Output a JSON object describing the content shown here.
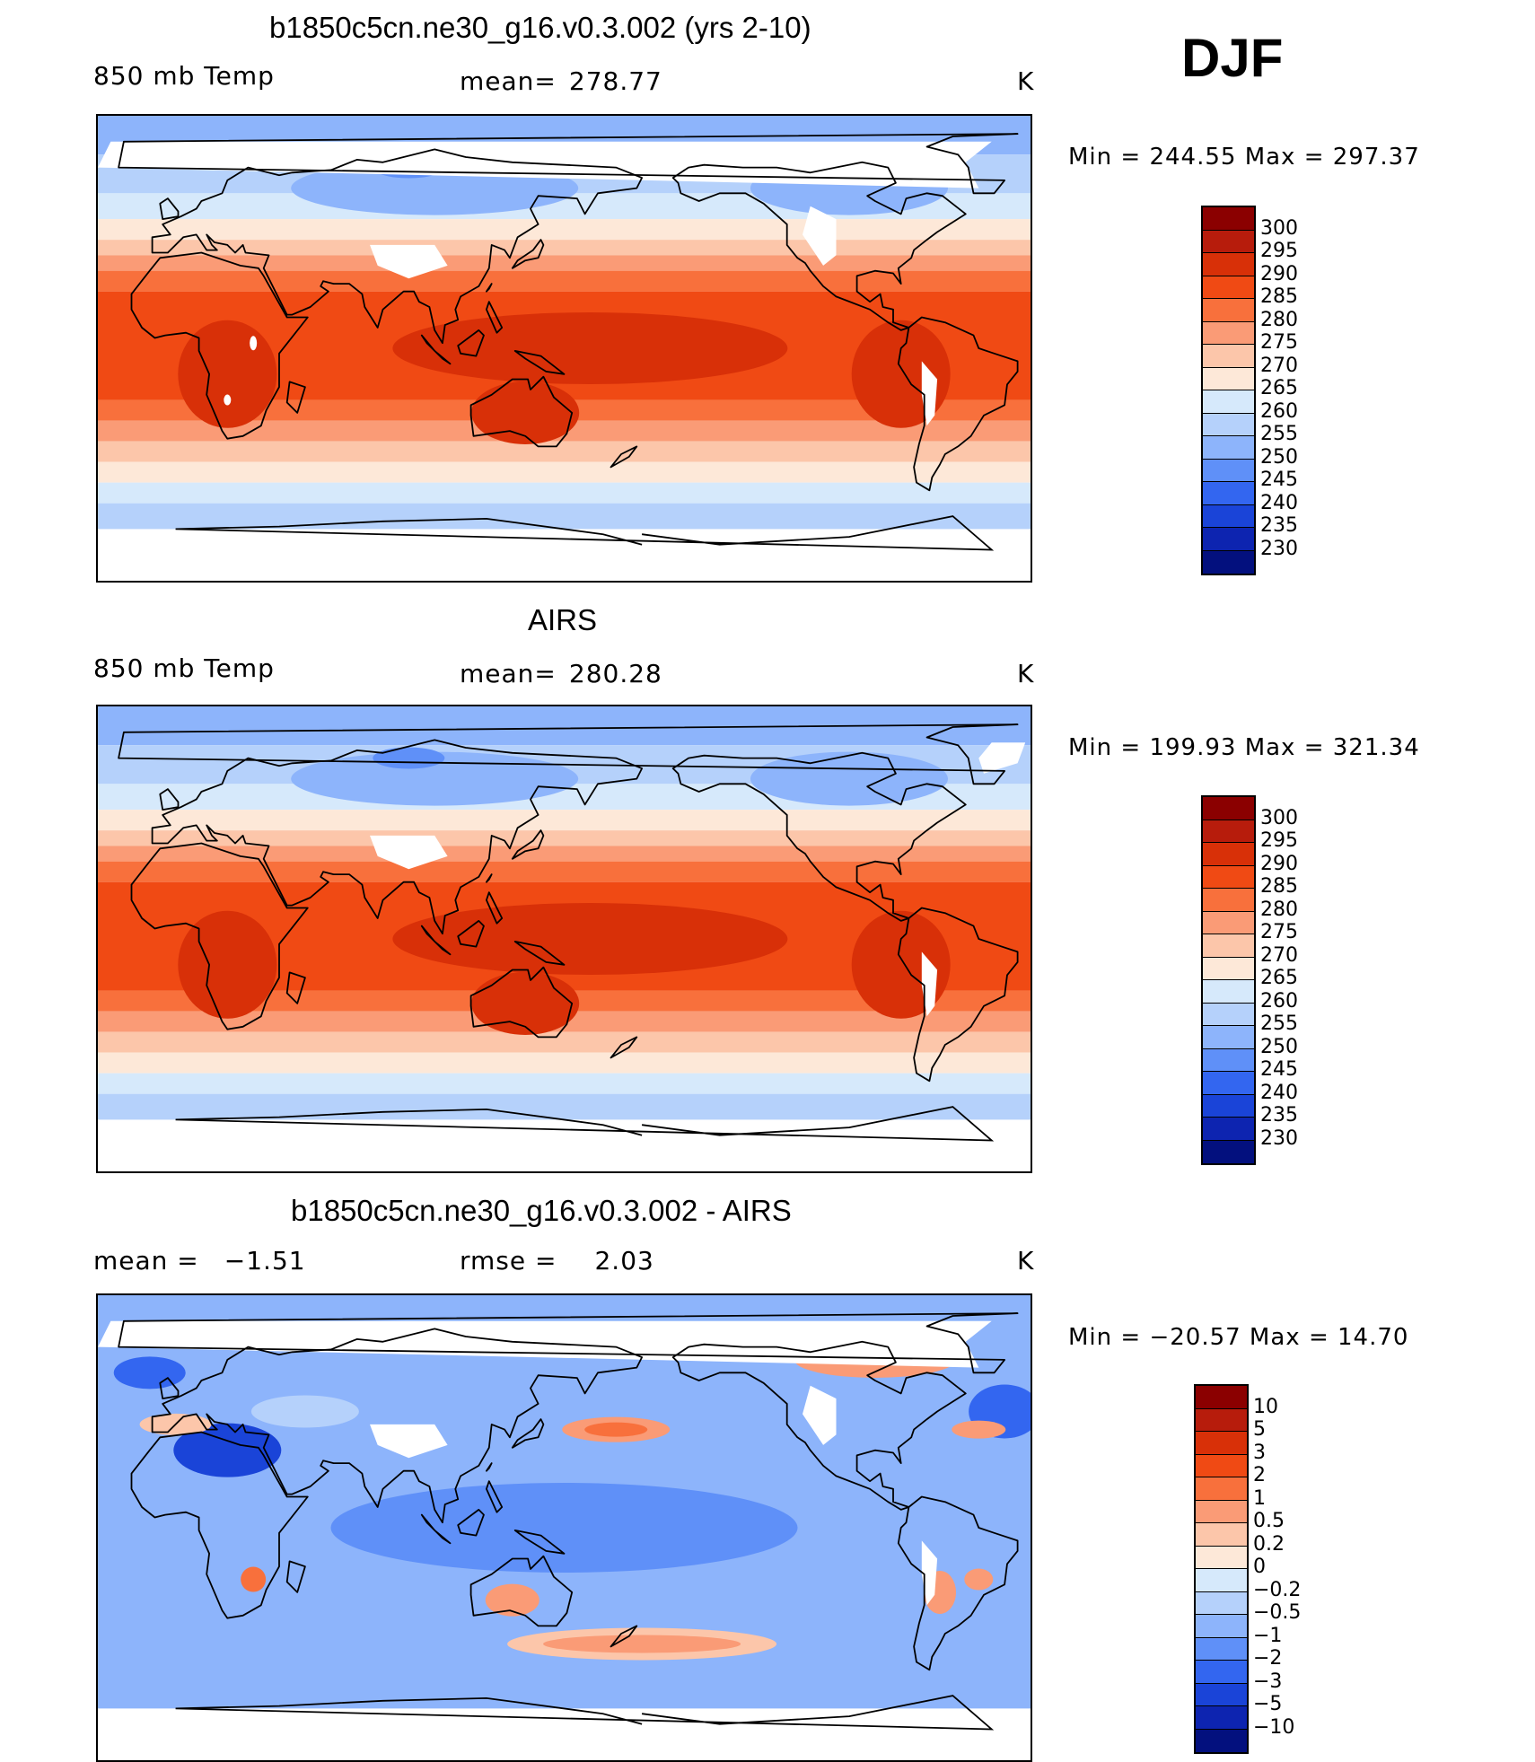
{
  "season": "DJF",
  "units": "K",
  "panels": [
    {
      "title": "b1850c5cn.ne30_g16.v0.3.002 (yrs 2-10)",
      "left_label": "850 mb Temp",
      "center_label": "mean=",
      "center_value": "278.77",
      "right_label": "K",
      "range_label": "Min  =  244.55  Max  =  297.37",
      "colorbar": {
        "ticks": [
          "300",
          "295",
          "290",
          "285",
          "280",
          "275",
          "270",
          "265",
          "260",
          "255",
          "250",
          "245",
          "240",
          "235",
          "230"
        ],
        "colors": [
          "#8b0000",
          "#b71c0c",
          "#d83008",
          "#f04a14",
          "#f8703c",
          "#fa9b76",
          "#fcc6aa",
          "#fde8d8",
          "#d6e9fb",
          "#b5d1fb",
          "#8db4fb",
          "#5f90f8",
          "#3366f0",
          "#1a44d8",
          "#0d24b0",
          "#03107e"
        ]
      },
      "map_style": "temp"
    },
    {
      "title": "AIRS",
      "left_label": "850 mb Temp",
      "center_label": "mean=",
      "center_value": "280.28",
      "right_label": "K",
      "range_label": "Min  =  199.93  Max  =  321.34",
      "colorbar": {
        "ticks": [
          "300",
          "295",
          "290",
          "285",
          "280",
          "275",
          "270",
          "265",
          "260",
          "255",
          "250",
          "245",
          "240",
          "235",
          "230"
        ],
        "colors": [
          "#8b0000",
          "#b71c0c",
          "#d83008",
          "#f04a14",
          "#f8703c",
          "#fa9b76",
          "#fcc6aa",
          "#fde8d8",
          "#d6e9fb",
          "#b5d1fb",
          "#8db4fb",
          "#5f90f8",
          "#3366f0",
          "#1a44d8",
          "#0d24b0",
          "#03107e"
        ]
      },
      "map_style": "temp"
    },
    {
      "title": "b1850c5cn.ne30_g16.v0.3.002 - AIRS",
      "left_label": "mean =",
      "left_value": "−1.51",
      "center_label": "rmse =",
      "center_value": "2.03",
      "right_label": "K",
      "range_label": "Min  =  −20.57  Max  =   14.70",
      "colorbar": {
        "ticks": [
          "10",
          "5",
          "3",
          "2",
          "1",
          "0.5",
          "0.2",
          "0",
          "−0.2",
          "−0.5",
          "−1",
          "−2",
          "−3",
          "−5",
          "−10"
        ],
        "colors": [
          "#8b0000",
          "#b71c0c",
          "#d83008",
          "#f04a14",
          "#f8703c",
          "#fa9b76",
          "#fcc6aa",
          "#fde8d8",
          "#d6e9fb",
          "#b5d1fb",
          "#8db4fb",
          "#5f90f8",
          "#3366f0",
          "#1a44d8",
          "#0d24b0",
          "#03107e"
        ]
      },
      "map_style": "diff"
    }
  ]
}
